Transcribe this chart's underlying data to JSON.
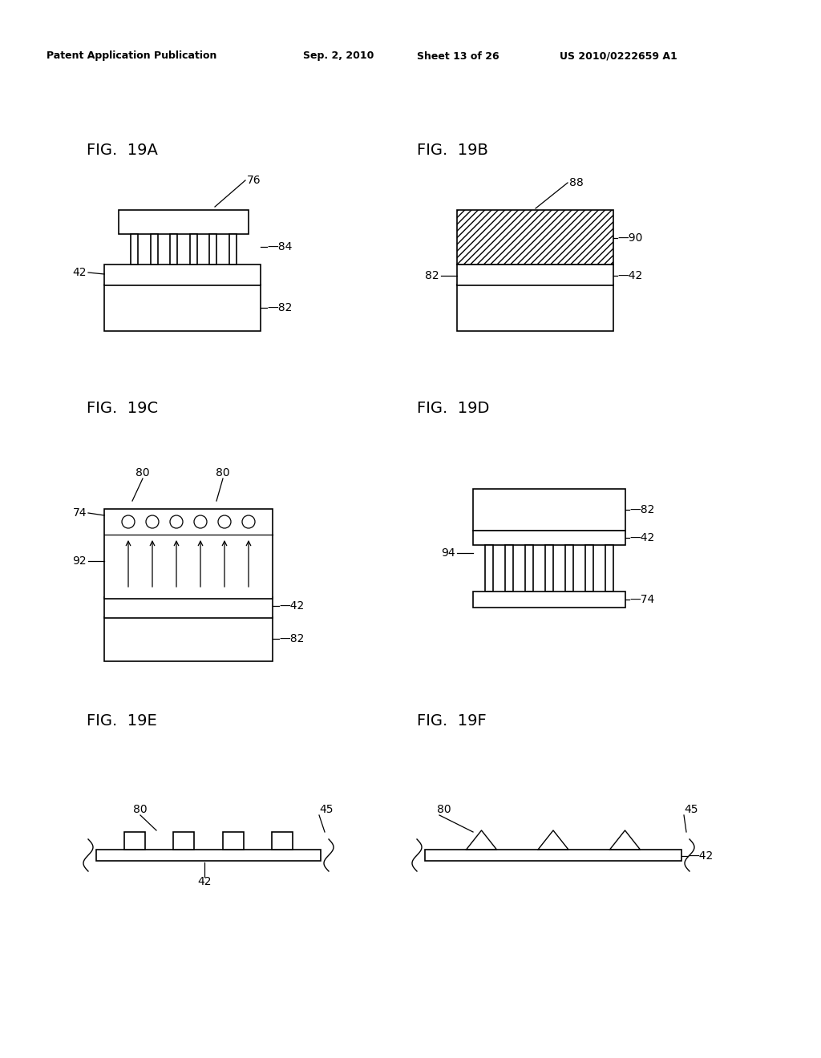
{
  "bg_color": "#ffffff",
  "header_left": "Patent Application Publication",
  "header_mid1": "Sep. 2, 2010",
  "header_mid2": "Sheet 13 of 26",
  "header_right": "US 2010/0222659 A1",
  "lw": 1.2,
  "fs_fig": 14,
  "fs_ann": 10
}
